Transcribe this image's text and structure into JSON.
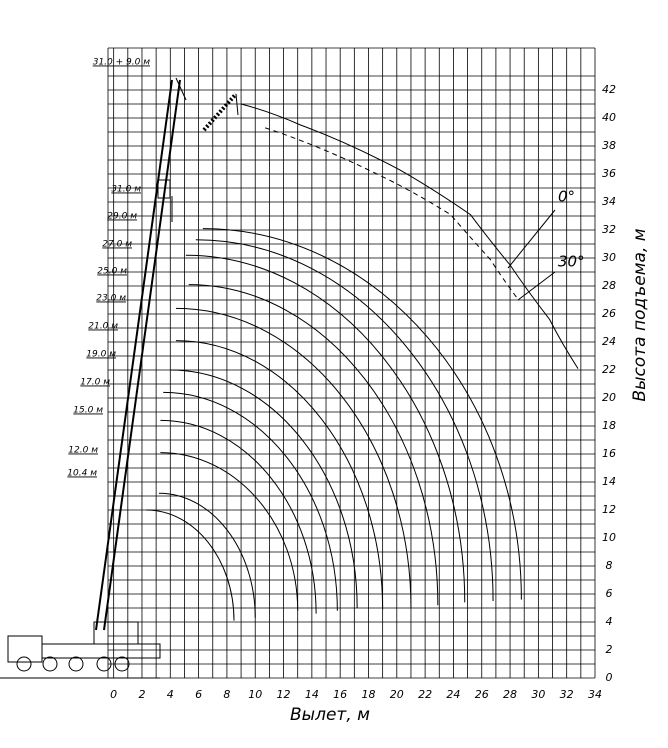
{
  "chart_data": {
    "type": "line",
    "x_label": "Вылет, м",
    "y_label": "Высота подъема, м",
    "xlim": [
      -0.4,
      34
    ],
    "ylim": [
      0,
      45
    ],
    "xticks": [
      0,
      2,
      4,
      6,
      8,
      10,
      12,
      14,
      16,
      18,
      20,
      22,
      24,
      26,
      28,
      30,
      32,
      34
    ],
    "yticks": [
      0,
      2,
      4,
      6,
      8,
      10,
      12,
      14,
      16,
      18,
      20,
      22,
      24,
      26,
      28,
      30,
      32,
      34,
      36,
      38,
      40,
      42
    ],
    "grid": true,
    "series": [
      {
        "name": "0°",
        "color": "#000",
        "dash": false,
        "x": [
          9.0,
          13.2,
          20.2,
          25.2,
          28.0,
          30.8,
          32.8
        ],
        "values": [
          41.0,
          39.5,
          36.3,
          33.1,
          29.5,
          25.6,
          22.1
        ]
      },
      {
        "name": "30°",
        "color": "#000",
        "dash": true,
        "x": [
          10.7,
          18.8,
          23.8,
          26.6,
          28.6
        ],
        "values": [
          39.3,
          35.9,
          33.1,
          29.9,
          27.0
        ]
      }
    ],
    "arcs": [
      {
        "x": [
          2.3,
          8.5
        ],
        "values": [
          12.0,
          4.1
        ]
      },
      {
        "x": [
          3.2,
          10.0
        ],
        "values": [
          13.2,
          4.3
        ]
      },
      {
        "x": [
          3.3,
          13.0
        ],
        "values": [
          16.1,
          4.8
        ]
      },
      {
        "x": [
          3.3,
          14.3
        ],
        "values": [
          18.4,
          4.6
        ]
      },
      {
        "x": [
          3.5,
          15.8
        ],
        "values": [
          20.4,
          4.8
        ]
      },
      {
        "x": [
          4.0,
          17.2
        ],
        "values": [
          22.0,
          5.0
        ]
      },
      {
        "x": [
          4.4,
          19.0
        ],
        "values": [
          24.1,
          4.9
        ]
      },
      {
        "x": [
          4.4,
          21.0
        ],
        "values": [
          26.4,
          5.0
        ]
      },
      {
        "x": [
          5.3,
          22.9
        ],
        "values": [
          28.1,
          5.2
        ]
      },
      {
        "x": [
          5.1,
          24.8
        ],
        "values": [
          30.2,
          5.4
        ]
      },
      {
        "x": [
          5.8,
          26.8
        ],
        "values": [
          31.3,
          5.5
        ]
      },
      {
        "x": [
          6.3,
          28.8
        ],
        "values": [
          32.1,
          5.6
        ]
      }
    ],
    "boom_labels": [
      "10.4 м",
      "12.0 м",
      "15.0 м",
      "17.0 м",
      "19.0 м",
      "21.0 м",
      "23.0 м",
      "25.0 м",
      "27.0 м",
      "29.0 м",
      "31.0 м",
      "31.0 + 9.0 м"
    ]
  }
}
